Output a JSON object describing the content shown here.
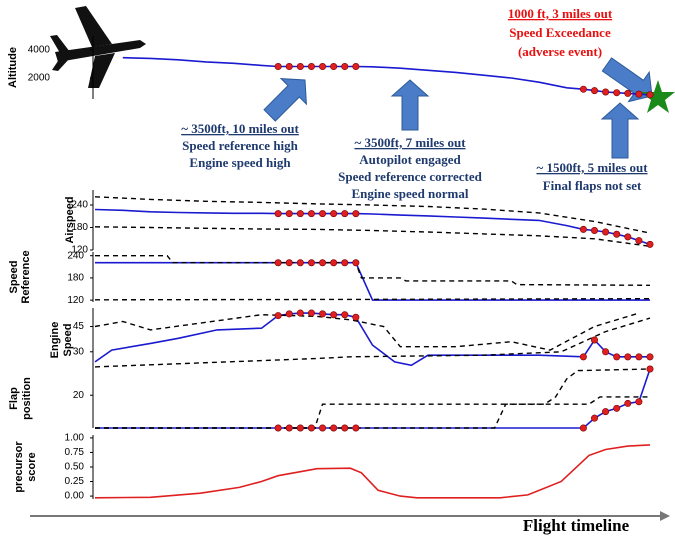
{
  "chart_data": [
    {
      "type": "line",
      "ylabel": [
        "Altitude"
      ],
      "xlim": [
        0,
        100
      ],
      "ylim": [
        500,
        5000
      ],
      "yticks": [
        2000,
        4000
      ],
      "series": [
        {
          "color": "#1a1ad0",
          "style": "solid",
          "x": [
            5,
            10,
            15,
            20,
            25,
            30,
            33,
            35,
            37,
            39,
            41,
            43,
            45,
            47,
            50,
            55,
            60,
            65,
            70,
            75,
            80,
            85,
            88,
            90,
            92,
            94,
            96,
            98,
            100
          ],
          "values": [
            3450,
            3400,
            3300,
            3150,
            3050,
            2900,
            2820,
            2820,
            2820,
            2820,
            2820,
            2820,
            2820,
            2820,
            2800,
            2700,
            2550,
            2400,
            2200,
            2000,
            1700,
            1300,
            1200,
            1100,
            1000,
            950,
            900,
            850,
            800
          ]
        },
        {
          "color": "#e02020",
          "style": "markers",
          "x": [
            33,
            35,
            37,
            39,
            41,
            43,
            45,
            47,
            88,
            90,
            92,
            94,
            96,
            98,
            100
          ],
          "values": [
            2820,
            2820,
            2820,
            2820,
            2820,
            2820,
            2820,
            2820,
            1200,
            1100,
            1000,
            950,
            900,
            850,
            800
          ]
        }
      ],
      "annotations": [
        {
          "color": "#1f3a6e",
          "lines": [
            "~ 3500ft, 10 miles out",
            "Speed reference high",
            "Engine speed high"
          ]
        },
        {
          "color": "#1f3a6e",
          "lines": [
            "~ 3500ft, 7 miles out",
            "Autopilot engaged",
            "Speed reference corrected",
            "Engine speed normal"
          ]
        },
        {
          "color": "#1f3a6e",
          "lines": [
            "~ 1500ft, 5 miles out",
            "Final flaps not set"
          ]
        },
        {
          "color": "#e81010",
          "lines": [
            "1000 ft, 3 miles out",
            "Speed Exceedance",
            "(adverse event)"
          ]
        }
      ]
    },
    {
      "type": "line",
      "ylabel": [
        "Airspeed"
      ],
      "xlim": [
        0,
        100
      ],
      "ylim": [
        120,
        280
      ],
      "yticks": [
        120,
        180,
        240
      ],
      "series": [
        {
          "color": "#1a1ad0",
          "style": "solid",
          "x": [
            0,
            5,
            10,
            15,
            20,
            25,
            30,
            33,
            35,
            37,
            39,
            41,
            43,
            45,
            47,
            50,
            55,
            60,
            65,
            70,
            75,
            80,
            85,
            88,
            90,
            92,
            94,
            96,
            98,
            100
          ],
          "values": [
            228,
            226,
            222,
            220,
            219,
            218,
            218,
            217,
            217,
            217,
            217,
            217,
            217,
            217,
            217,
            216,
            213,
            211,
            208,
            205,
            202,
            199,
            185,
            175,
            172,
            168,
            162,
            155,
            145,
            135
          ]
        },
        {
          "color": "#000000",
          "style": "dashed",
          "x": [
            0,
            10,
            20,
            30,
            40,
            50,
            60,
            70,
            80,
            90,
            100
          ],
          "values": [
            262,
            255,
            250,
            247,
            243,
            240,
            236,
            229,
            219,
            196,
            165
          ]
        },
        {
          "color": "#000000",
          "style": "dashed",
          "x": [
            0,
            10,
            20,
            30,
            40,
            50,
            60,
            70,
            80,
            90,
            100
          ],
          "values": [
            182,
            180,
            178,
            176,
            175,
            172,
            168,
            163,
            158,
            150,
            130
          ]
        },
        {
          "color": "#e02020",
          "style": "markers",
          "x": [
            33,
            35,
            37,
            39,
            41,
            43,
            45,
            47,
            88,
            90,
            92,
            94,
            96,
            98,
            100
          ],
          "values": [
            217,
            217,
            217,
            217,
            217,
            217,
            217,
            217,
            175,
            172,
            168,
            162,
            155,
            145,
            135
          ]
        }
      ]
    },
    {
      "type": "line",
      "ylabel": [
        "Speed",
        "Reference"
      ],
      "xlim": [
        0,
        100
      ],
      "ylim": [
        115,
        250
      ],
      "yticks": [
        120,
        180,
        240
      ],
      "series": [
        {
          "color": "#1a1ad0",
          "style": "solid",
          "x": [
            0,
            10,
            20,
            30,
            33,
            35,
            37,
            39,
            41,
            43,
            45,
            47,
            50,
            60,
            70,
            80,
            90,
            100
          ],
          "values": [
            221,
            221,
            221,
            221,
            221,
            221,
            221,
            221,
            221,
            221,
            221,
            221,
            120,
            120,
            120,
            120,
            120,
            120
          ]
        },
        {
          "color": "#000000",
          "style": "dashed",
          "x": [
            0,
            13,
            14,
            30,
            47,
            48,
            55,
            56,
            75,
            76,
            100
          ],
          "values": [
            240,
            240,
            221,
            221,
            221,
            180,
            180,
            172,
            172,
            162,
            160
          ]
        },
        {
          "color": "#000000",
          "style": "dashed",
          "x": [
            0,
            50,
            100
          ],
          "values": [
            121,
            122,
            124
          ]
        },
        {
          "color": "#e02020",
          "style": "markers",
          "x": [
            33,
            35,
            37,
            39,
            41,
            43,
            45,
            47
          ],
          "values": [
            221,
            221,
            221,
            221,
            221,
            221,
            221,
            221
          ]
        }
      ]
    },
    {
      "type": "line",
      "ylabel": [
        "Engine",
        "Speed"
      ],
      "xlim": [
        0,
        100
      ],
      "ylim": [
        18,
        56
      ],
      "yticks": [
        30,
        45
      ],
      "series": [
        {
          "color": "#1a1ad0",
          "style": "solid",
          "x": [
            0,
            3,
            10,
            15,
            22,
            30,
            33,
            35,
            37,
            39,
            41,
            43,
            45,
            47,
            50,
            54,
            57,
            60,
            68,
            80,
            88,
            90,
            92,
            94,
            96,
            98,
            100
          ],
          "values": [
            24,
            31,
            35,
            38,
            43,
            44,
            51.5,
            52.5,
            53,
            53,
            52.5,
            52,
            52,
            50.5,
            34,
            24,
            22,
            28,
            28,
            28,
            27,
            37,
            30,
            27,
            27,
            27,
            27
          ]
        },
        {
          "color": "#000000",
          "style": "dashed",
          "x": [
            0,
            5,
            10,
            30,
            40,
            46,
            52,
            55,
            65,
            75,
            82,
            90,
            98
          ],
          "values": [
            45,
            48,
            43,
            52,
            51,
            49,
            45,
            33,
            33,
            36,
            31,
            45,
            53
          ]
        },
        {
          "color": "#000000",
          "style": "dashed",
          "x": [
            0,
            40,
            46,
            70,
            84,
            92,
            100
          ],
          "values": [
            21,
            26,
            27,
            28,
            30,
            42,
            50
          ]
        },
        {
          "color": "#e02020",
          "style": "markers",
          "x": [
            33,
            35,
            37,
            39,
            41,
            43,
            45,
            47,
            88,
            90,
            92,
            94,
            96,
            98,
            100
          ],
          "values": [
            51.5,
            52.5,
            53,
            53,
            52.5,
            52,
            52,
            50.5,
            27,
            37,
            30,
            27,
            27,
            27,
            27
          ]
        }
      ]
    },
    {
      "type": "line",
      "ylabel": [
        "Flap",
        "position"
      ],
      "xlim": [
        0,
        100
      ],
      "ylim": [
        0,
        36
      ],
      "yticks": [
        20
      ],
      "series": [
        {
          "color": "#1a1ad0",
          "style": "solid",
          "x": [
            0,
            33,
            35,
            37,
            39,
            41,
            43,
            45,
            47,
            88,
            90,
            92,
            94,
            96,
            98,
            100
          ],
          "values": [
            0,
            0,
            0,
            0,
            0,
            0,
            0,
            0,
            0,
            0,
            6,
            10,
            12,
            15,
            16,
            36
          ]
        },
        {
          "color": "#000000",
          "style": "dashed",
          "x": [
            0,
            39.6,
            41,
            89,
            91,
            100
          ],
          "values": [
            0,
            0,
            14.5,
            14.5,
            19,
            19
          ]
        },
        {
          "color": "#000000",
          "style": "dashed",
          "x": [
            0,
            72,
            74,
            81,
            83,
            85,
            87,
            100
          ],
          "values": [
            0,
            0,
            14.5,
            14.5,
            19,
            30,
            35,
            36
          ]
        },
        {
          "color": "#e02020",
          "style": "markers",
          "x": [
            33,
            35,
            37,
            39,
            41,
            43,
            45,
            47,
            88,
            90,
            92,
            94,
            96,
            98,
            100
          ],
          "values": [
            0,
            0,
            0,
            0,
            0,
            0,
            0,
            0,
            0,
            6,
            10,
            12,
            15,
            16,
            36
          ]
        }
      ]
    },
    {
      "type": "line",
      "ylabel": [
        "precursor",
        "score"
      ],
      "xlabel": "Flight timeline",
      "xlim": [
        0,
        100
      ],
      "ylim": [
        -0.05,
        1.05
      ],
      "yticks": [
        {
          "value": 0,
          "label": "0.00"
        },
        0.25,
        {
          "value": 0.5,
          "label": "0.50"
        },
        0.75,
        {
          "value": 1,
          "label": "1.00"
        }
      ],
      "series": [
        {
          "color": "#e02020",
          "style": "solid",
          "x": [
            0,
            10,
            19,
            26,
            30,
            33,
            37,
            40,
            46,
            48,
            51,
            55,
            58,
            73,
            78,
            84,
            89,
            92,
            96,
            100
          ],
          "values": [
            -0.03,
            -0.02,
            0.05,
            0.15,
            0.25,
            0.35,
            0.42,
            0.47,
            0.48,
            0.4,
            0.1,
            0,
            -0.03,
            -0.03,
            0.02,
            0.25,
            0.7,
            0.8,
            0.86,
            0.88
          ]
        }
      ]
    }
  ]
}
